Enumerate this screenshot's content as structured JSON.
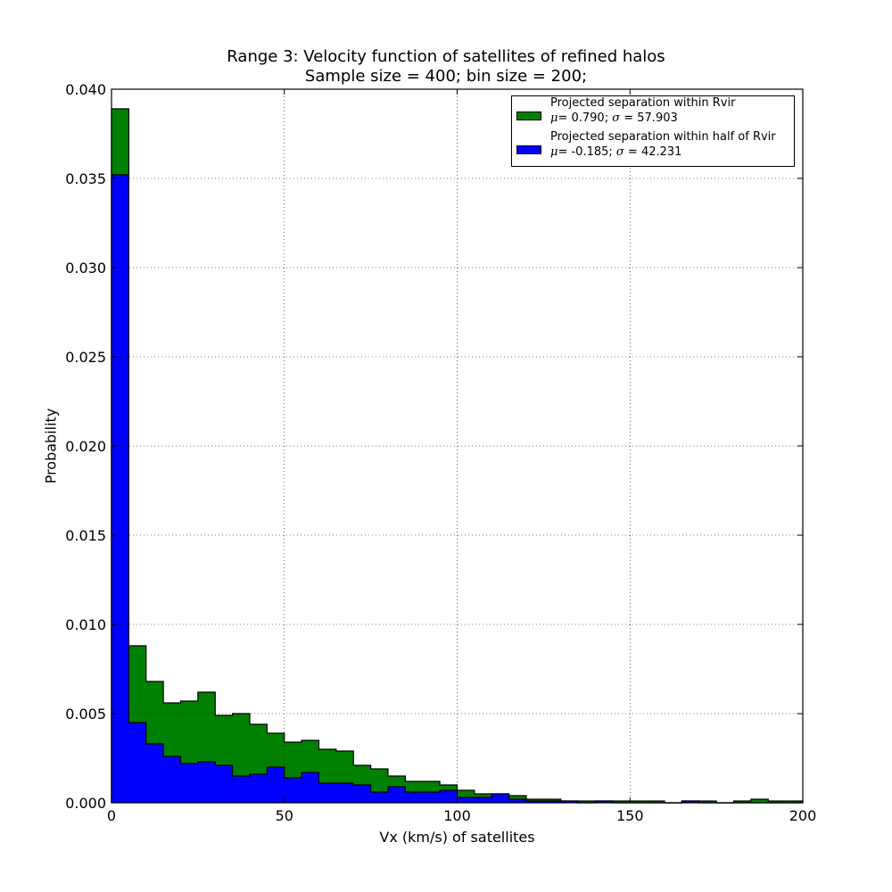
{
  "chart_data": {
    "type": "histogram",
    "title_line1": "Range 3: Velocity function of satellites of refined halos",
    "title_line2": "Sample size = 400; bin size = 200;",
    "xlabel": "Vx (km/s) of satellites",
    "ylabel": "Probability",
    "xlim": [
      0,
      200
    ],
    "ylim": [
      0,
      0.04
    ],
    "x_ticks": [
      "0",
      "50",
      "100",
      "150",
      "200"
    ],
    "y_ticks": [
      "0.000",
      "0.005",
      "0.010",
      "0.015",
      "0.020",
      "0.025",
      "0.030",
      "0.035",
      "0.040"
    ],
    "grid": true,
    "legend_position": "top-right",
    "bin_width": 5,
    "series": [
      {
        "name": "Projected separation within Rvir",
        "mu": "0.790",
        "sigma": "57.903",
        "color": "#008000",
        "values": [
          0.0389,
          0.0088,
          0.0068,
          0.0056,
          0.0057,
          0.0062,
          0.0049,
          0.005,
          0.0044,
          0.0039,
          0.0034,
          0.0035,
          0.003,
          0.0029,
          0.0021,
          0.0019,
          0.0015,
          0.0012,
          0.0012,
          0.001,
          0.0007,
          0.0005,
          0.0005,
          0.0004,
          0.0002,
          0.0002,
          0.0001,
          0.0001,
          0.0001,
          0.0001,
          0.0001,
          0.0001,
          0.0,
          0.0001,
          0.0001,
          0.0,
          0.0001,
          0.0002,
          0.0001,
          0.0001
        ]
      },
      {
        "name": "Projected separation within half of Rvir",
        "mu": "-0.185",
        "sigma": "42.231",
        "color": "#0000ff",
        "values": [
          0.0352,
          0.0045,
          0.0033,
          0.0026,
          0.0022,
          0.0023,
          0.0021,
          0.0015,
          0.0016,
          0.002,
          0.0014,
          0.0017,
          0.0011,
          0.0011,
          0.001,
          0.0006,
          0.0009,
          0.0006,
          0.0006,
          0.0007,
          0.0003,
          0.0003,
          0.0005,
          0.0002,
          0.0001,
          0.0001,
          0.0001,
          0.0,
          0.0001,
          0.0,
          0.0,
          0.0,
          0.0,
          0.0001,
          0.0,
          0.0,
          0.0,
          0.0,
          0.0,
          0.0
        ]
      }
    ]
  }
}
